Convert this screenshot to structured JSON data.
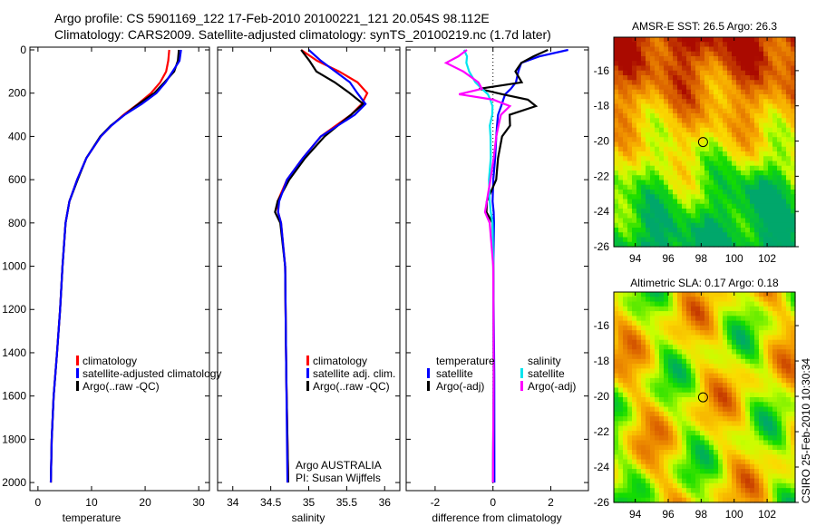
{
  "title_line1": "Argo profile: CS 5901169_122 17-Feb-2010 20100221_121 20.054S 98.112E",
  "title_line2": "Climatology: CARS2009. Satellite-adjusted climatology: synTS_20100219.nc (1.7d later)",
  "side_label": "CSIRO 25-Feb-2010 10:30:34",
  "chart_data": [
    {
      "type": "line",
      "id": "temperature",
      "xlabel": "temperature",
      "ylabel": "",
      "xlim": [
        -1.5,
        32
      ],
      "ylim": [
        2050,
        0
      ],
      "xticks": [
        0,
        10,
        20,
        30
      ],
      "yticks": [
        0,
        200,
        400,
        600,
        800,
        1000,
        1200,
        1400,
        1600,
        1800,
        2000
      ],
      "legend": [
        "climatology",
        "satellite-adjusted climatology",
        "Argo(..raw -QC)"
      ],
      "depth": [
        0,
        50,
        100,
        150,
        200,
        250,
        300,
        350,
        400,
        500,
        600,
        700,
        800,
        1000,
        1200,
        1400,
        1600,
        1800,
        2000
      ],
      "series": [
        {
          "name": "climatology",
          "color": "#ff0000",
          "values": [
            24.5,
            24.2,
            23.8,
            22.8,
            21.2,
            18.8,
            16.0,
            13.6,
            11.6,
            9.0,
            7.4,
            6.0,
            5.2,
            4.5,
            4.0,
            3.5,
            3.0,
            2.7,
            2.4
          ]
        },
        {
          "name": "Argo(..raw -QC)",
          "color": "#000000",
          "values": [
            26.3,
            26.0,
            25.3,
            23.6,
            21.8,
            18.9,
            16.2,
            13.5,
            11.5,
            9.0,
            7.5,
            6.0,
            5.2,
            4.5,
            4.0,
            3.5,
            3.0,
            2.7,
            2.4
          ]
        },
        {
          "name": "satellite-adjusted climatology",
          "color": "#0000ff",
          "values": [
            26.7,
            26.3,
            25.0,
            23.8,
            22.2,
            19.5,
            16.2,
            13.6,
            11.6,
            9.0,
            7.4,
            6.0,
            5.2,
            4.5,
            4.0,
            3.5,
            3.0,
            2.7,
            2.4
          ]
        }
      ]
    },
    {
      "type": "line",
      "id": "salinity",
      "xlabel": "salinity",
      "ylabel": "",
      "xlim": [
        33.8,
        36.2
      ],
      "ylim": [
        2050,
        0
      ],
      "xticks": [
        34,
        34.5,
        35,
        35.5,
        36
      ],
      "legend": [
        "climatology",
        "satellite adj. clim.",
        "Argo(..raw -QC)"
      ],
      "annotation": [
        "Argo AUSTRALIA",
        "PI: Susan Wijffels"
      ],
      "depth": [
        0,
        50,
        100,
        150,
        200,
        250,
        300,
        400,
        500,
        600,
        700,
        750,
        800,
        1000,
        1500,
        2000
      ],
      "series": [
        {
          "name": "climatology",
          "color": "#ff0000",
          "values": [
            34.9,
            35.1,
            35.4,
            35.65,
            35.78,
            35.7,
            35.55,
            35.15,
            34.92,
            34.72,
            34.6,
            34.6,
            34.63,
            34.68,
            34.7,
            34.73
          ]
        },
        {
          "name": "Argo(..raw -QC)",
          "color": "#000000",
          "values": [
            34.9,
            35.0,
            35.1,
            35.35,
            35.55,
            35.72,
            35.55,
            35.2,
            34.95,
            34.75,
            34.6,
            34.56,
            34.62,
            34.68,
            34.7,
            34.73
          ]
        },
        {
          "name": "satellite adj. clim.",
          "color": "#0000ff",
          "values": [
            35.0,
            35.15,
            35.35,
            35.55,
            35.65,
            35.75,
            35.6,
            35.15,
            34.92,
            34.72,
            34.62,
            34.6,
            34.63,
            34.68,
            34.7,
            34.72
          ]
        }
      ]
    },
    {
      "type": "line",
      "id": "difference",
      "xlabel": "difference from climatology",
      "xlim": [
        -3,
        3.3
      ],
      "ylim": [
        2050,
        0
      ],
      "xticks": [
        -2,
        0,
        2
      ],
      "legend_left_title": "temperature",
      "legend_left": [
        "satellite",
        "Argo(-adj)"
      ],
      "legend_right_title": "salinity",
      "legend_right": [
        "satellite",
        "Argo(-adj)"
      ],
      "depth": [
        0,
        30,
        60,
        100,
        150,
        180,
        205,
        230,
        260,
        300,
        350,
        400,
        500,
        600,
        700,
        750,
        800,
        1000,
        1500,
        2000
      ],
      "series": [
        {
          "name": "temperature satellite",
          "color": "#0000ff",
          "values": [
            2.6,
            1.6,
            1.0,
            0.9,
            0.8,
            0.6,
            0.4,
            0.35,
            0.3,
            0.2,
            0.15,
            0.1,
            0.05,
            0.0,
            0.0,
            0.05,
            0.05,
            0.0,
            0.02,
            0.05
          ]
        },
        {
          "name": "temperature Argo(-adj)",
          "color": "#000000",
          "values": [
            1.9,
            1.4,
            1.0,
            0.8,
            1.0,
            -0.5,
            0.3,
            1.2,
            1.5,
            0.6,
            0.6,
            0.3,
            0.15,
            0.1,
            -0.2,
            -0.2,
            0.0,
            0.0,
            0.0,
            0.0
          ]
        },
        {
          "name": "salinity satellite",
          "color": "#00e5ee",
          "values": [
            -1.0,
            -0.9,
            -0.9,
            -0.8,
            -0.6,
            -0.4,
            -0.2,
            -0.1,
            0.0,
            0.0,
            -0.1,
            -0.1,
            -0.1,
            -0.15,
            -0.1,
            -0.05,
            0.0,
            0.0,
            0.0,
            0.0
          ]
        },
        {
          "name": "salinity Argo(-adj)",
          "color": "#ff00ff",
          "values": [
            -0.9,
            -1.2,
            -1.6,
            -1.0,
            -0.5,
            -0.4,
            -1.2,
            0.0,
            0.6,
            0.3,
            0.2,
            0.1,
            0.0,
            -0.1,
            -0.2,
            -0.25,
            -0.1,
            0.0,
            0.0,
            0.0
          ]
        }
      ]
    },
    {
      "type": "heatmap",
      "id": "sst_map",
      "title": "AMSR-E SST: 26.5 Argo: 26.3",
      "xlim": [
        92.7,
        103.7
      ],
      "ylim": [
        -26,
        -14.1
      ],
      "xticks": [
        94,
        96,
        98,
        100,
        102
      ],
      "yticks": [
        -16,
        -18,
        -20,
        -22,
        -24,
        -26
      ],
      "marker": {
        "lon": 98.112,
        "lat": -20.054
      }
    },
    {
      "type": "heatmap",
      "id": "sla_map",
      "title": "Altimetric SLA: 0.17 Argo: 0.18",
      "xlim": [
        92.7,
        103.7
      ],
      "ylim": [
        -26,
        -14.1
      ],
      "xticks": [
        94,
        96,
        98,
        100,
        102
      ],
      "yticks": [
        -16,
        -18,
        -20,
        -22,
        -24,
        -26
      ],
      "marker": {
        "lon": 98.112,
        "lat": -20.054
      }
    }
  ]
}
